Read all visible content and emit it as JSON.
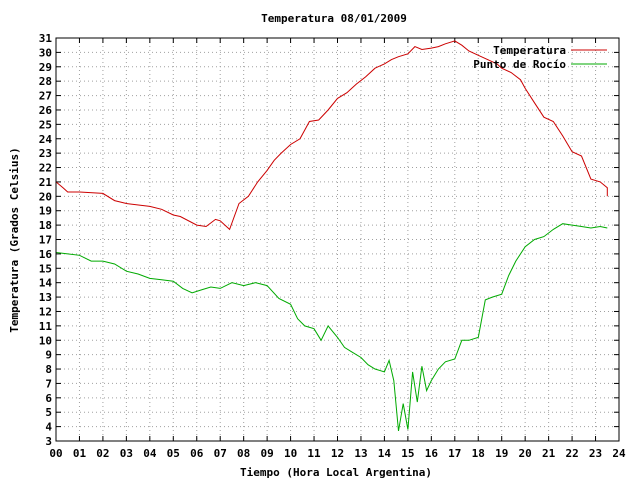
{
  "chart_data": {
    "type": "line",
    "title": "Temperatura 08/01/2009",
    "xlabel": "Tiempo (Hora Local Argentina)",
    "ylabel": "Temperatura (Grados Celsius)",
    "xlim": [
      0,
      24
    ],
    "ylim": [
      3,
      31
    ],
    "x_ticks": [
      "00",
      "01",
      "02",
      "03",
      "04",
      "05",
      "06",
      "07",
      "08",
      "09",
      "10",
      "11",
      "12",
      "13",
      "14",
      "15",
      "16",
      "17",
      "18",
      "19",
      "20",
      "21",
      "22",
      "23",
      "24"
    ],
    "y_ticks": [
      3,
      4,
      5,
      6,
      7,
      8,
      9,
      10,
      11,
      12,
      13,
      14,
      15,
      16,
      17,
      18,
      19,
      20,
      21,
      22,
      23,
      24,
      25,
      26,
      27,
      28,
      29,
      30,
      31
    ],
    "grid": true,
    "legend_position": "top-right",
    "series": [
      {
        "name": "Temperatura",
        "color": "#cc0000",
        "x": [
          0,
          0.3,
          0.5,
          1,
          2,
          2.5,
          3,
          4,
          4.5,
          5,
          5.3,
          6,
          6.4,
          6.8,
          7,
          7.2,
          7.4,
          7.8,
          8.2,
          8.6,
          9,
          9.3,
          9.6,
          10,
          10.4,
          10.8,
          11.2,
          11.6,
          12,
          12.4,
          12.8,
          13.2,
          13.6,
          14,
          14.3,
          14.6,
          15,
          15.3,
          15.6,
          16,
          16.3,
          16.6,
          17,
          17.3,
          17.6,
          18,
          18.4,
          18.8,
          19,
          19.4,
          19.8,
          20,
          20.4,
          20.8,
          21.2,
          21.6,
          22,
          22.4,
          22.8,
          23.2,
          23.5
        ],
        "y": [
          21,
          20.6,
          20.3,
          20.3,
          20.2,
          19.7,
          19.5,
          19.3,
          19.1,
          18.7,
          18.6,
          18,
          17.9,
          18.4,
          18.3,
          18,
          17.7,
          19.5,
          20,
          21,
          21.8,
          22.5,
          23,
          23.6,
          24,
          25.2,
          25.3,
          26,
          26.8,
          27.2,
          27.8,
          28.3,
          28.9,
          29.2,
          29.5,
          29.7,
          29.9,
          30.4,
          30.2,
          30.3,
          30.4,
          30.6,
          30.8,
          30.5,
          30.1,
          29.8,
          29.5,
          29.2,
          28.9,
          28.6,
          28.1,
          27.5,
          26.5,
          25.5,
          25.2,
          24.2,
          23.1,
          22.8,
          21.2,
          21,
          20.6
        ],
        "y_end": 20
      },
      {
        "name": "Punto de Rocío",
        "color": "#00aa00",
        "x": [
          0,
          0.5,
          1,
          1.5,
          2,
          2.5,
          3,
          3.5,
          4,
          4.5,
          5,
          5.4,
          5.8,
          6.2,
          6.6,
          7,
          7.5,
          8,
          8.5,
          9,
          9.5,
          10,
          10.3,
          10.6,
          11,
          11.3,
          11.6,
          12,
          12.3,
          12.6,
          13,
          13.3,
          13.6,
          14,
          14.2,
          14.4,
          14.6,
          14.8,
          15,
          15.2,
          15.4,
          15.6,
          15.8,
          16,
          16.3,
          16.6,
          17,
          17.3,
          17.6,
          18,
          18.3,
          18.6,
          19,
          19.3,
          19.6,
          20,
          20.4,
          20.8,
          21.2,
          21.6,
          22,
          22.4,
          22.8,
          23.2,
          23.5
        ],
        "y": [
          16.1,
          16,
          15.9,
          15.5,
          15.5,
          15.3,
          14.8,
          14.6,
          14.3,
          14.2,
          14.1,
          13.6,
          13.3,
          13.5,
          13.7,
          13.6,
          14,
          13.8,
          14,
          13.8,
          12.9,
          12.5,
          11.5,
          11,
          10.8,
          10,
          11,
          10.2,
          9.5,
          9.2,
          8.8,
          8.3,
          8,
          7.8,
          8.6,
          7.2,
          3.7,
          5.6,
          3.8,
          7.8,
          5.7,
          8.2,
          6.5,
          7.2,
          8,
          8.5,
          8.7,
          10,
          10,
          10.2,
          12.8,
          13,
          13.2,
          14.5,
          15.5,
          16.5,
          17,
          17.2,
          17.7,
          18.1,
          18,
          17.9,
          17.8,
          17.9,
          17.8
        ],
        "y_end": 17.8
      }
    ]
  }
}
